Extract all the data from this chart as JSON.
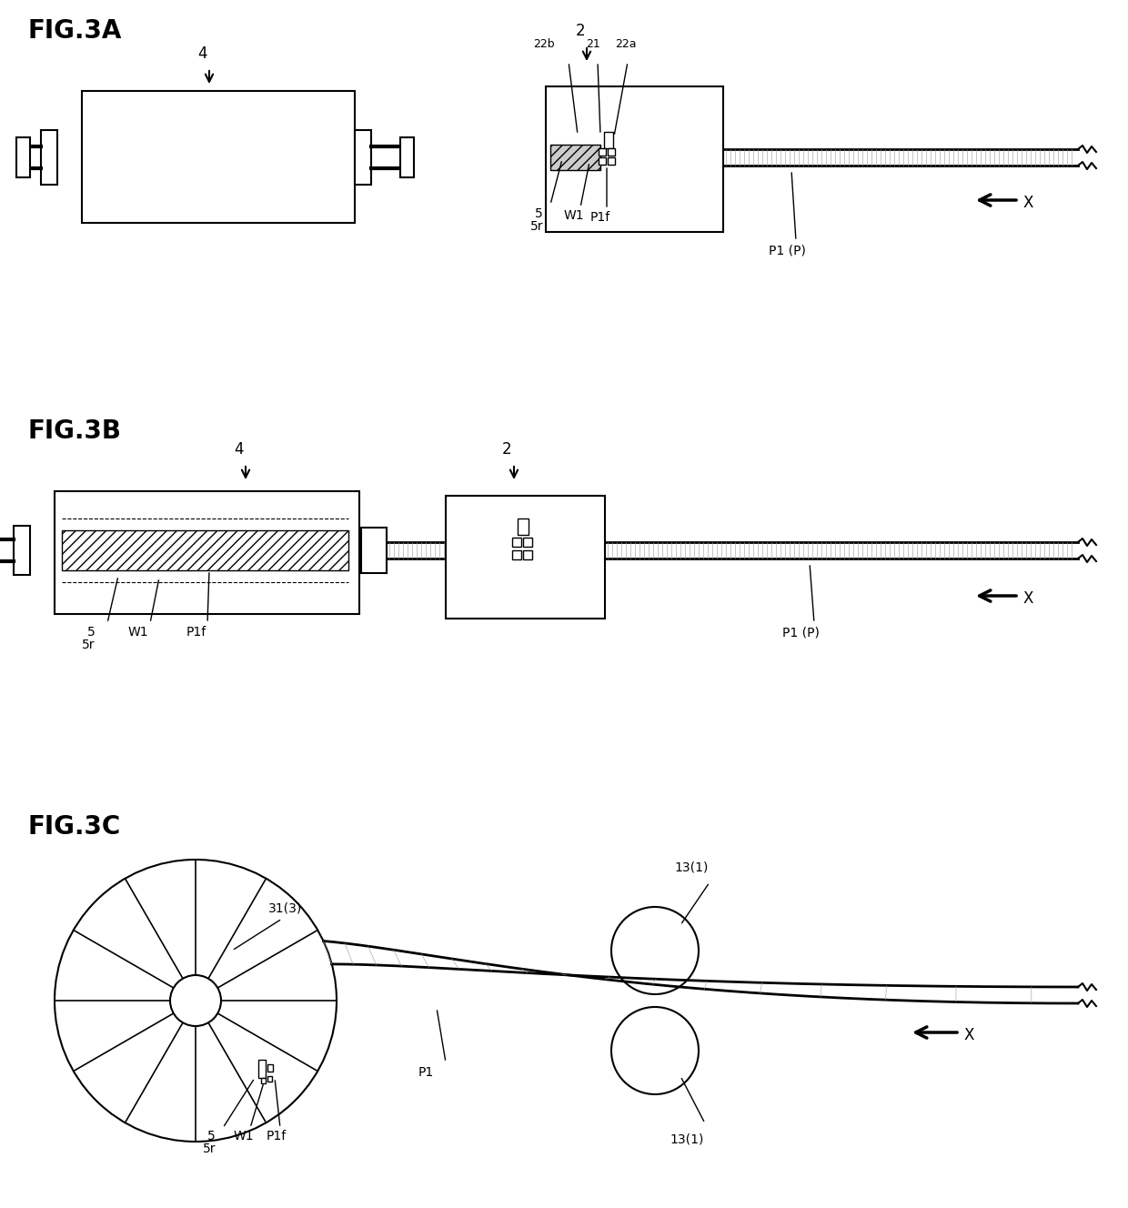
{
  "fig_labels": [
    "FIG.3A",
    "FIG.3B",
    "FIG.3C"
  ],
  "background_color": "#ffffff",
  "line_color": "#000000",
  "light_gray": "#aaaaaa",
  "hatch_color": "#555555"
}
